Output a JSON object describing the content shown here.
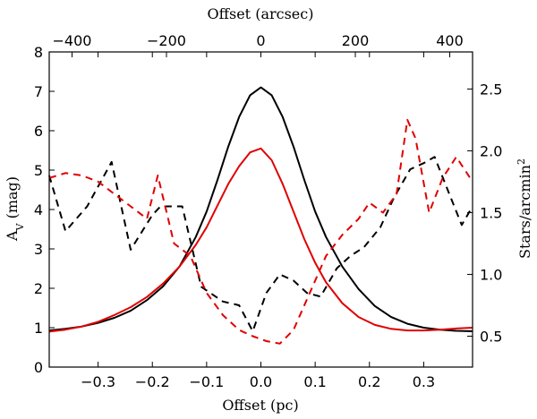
{
  "chart_data": {
    "type": "line",
    "x_bottom": {
      "label": "Offset (pc)",
      "lim": [
        -0.39,
        0.39
      ],
      "ticks": [
        -0.3,
        -0.2,
        -0.1,
        0.0,
        0.1,
        0.2,
        0.3
      ],
      "tick_labels": [
        "−0.3",
        "−0.2",
        "−0.1",
        "0.0",
        "0.1",
        "0.2",
        "0.3"
      ]
    },
    "x_top": {
      "label": "Offset (arcsec)",
      "ticks_pc": [
        -0.348,
        -0.174,
        0.0,
        0.174,
        0.348
      ],
      "tick_labels": [
        "−400",
        "−200",
        "0",
        "200",
        "400"
      ]
    },
    "y_left": {
      "label_main": "A",
      "label_sub": "V",
      "label_rest": " (mag)",
      "lim": [
        0,
        8
      ],
      "ticks": [
        0,
        1,
        2,
        3,
        4,
        5,
        6,
        7,
        8
      ],
      "tick_labels": [
        "0",
        "1",
        "2",
        "3",
        "4",
        "5",
        "6",
        "7",
        "8"
      ]
    },
    "y_right": {
      "label_main": "Stars/arcmin",
      "label_sup": "2",
      "lim": [
        0.25,
        2.8
      ],
      "ticks": [
        0.5,
        1.0,
        1.5,
        2.0,
        2.5
      ],
      "tick_labels": [
        "0.5",
        "1.0",
        "1.5",
        "2.0",
        "2.5"
      ]
    },
    "series": [
      {
        "name": "Av model (black)",
        "axis": "left",
        "color": "#000000",
        "dashed": false,
        "x": [
          -0.39,
          -0.36,
          -0.33,
          -0.3,
          -0.27,
          -0.24,
          -0.21,
          -0.18,
          -0.15,
          -0.12,
          -0.1,
          -0.08,
          -0.06,
          -0.04,
          -0.02,
          0.0,
          0.02,
          0.04,
          0.06,
          0.08,
          0.1,
          0.12,
          0.15,
          0.18,
          0.21,
          0.24,
          0.27,
          0.3,
          0.33,
          0.36,
          0.39
        ],
        "y": [
          0.93,
          0.97,
          1.03,
          1.12,
          1.25,
          1.43,
          1.7,
          2.05,
          2.55,
          3.3,
          3.95,
          4.75,
          5.6,
          6.35,
          6.9,
          7.1,
          6.9,
          6.35,
          5.6,
          4.75,
          3.95,
          3.3,
          2.55,
          1.98,
          1.55,
          1.27,
          1.1,
          1.0,
          0.95,
          0.92,
          0.91
        ]
      },
      {
        "name": "Av model (red)",
        "axis": "left",
        "color": "#e00000",
        "dashed": false,
        "x": [
          -0.39,
          -0.36,
          -0.33,
          -0.3,
          -0.27,
          -0.24,
          -0.21,
          -0.18,
          -0.15,
          -0.12,
          -0.1,
          -0.08,
          -0.06,
          -0.04,
          -0.02,
          0.0,
          0.02,
          0.04,
          0.06,
          0.08,
          0.1,
          0.12,
          0.15,
          0.18,
          0.21,
          0.24,
          0.27,
          0.3,
          0.33,
          0.36,
          0.39
        ],
        "y": [
          0.9,
          0.95,
          1.03,
          1.15,
          1.32,
          1.52,
          1.78,
          2.12,
          2.55,
          3.1,
          3.55,
          4.1,
          4.65,
          5.1,
          5.45,
          5.55,
          5.25,
          4.65,
          3.95,
          3.25,
          2.65,
          2.15,
          1.62,
          1.27,
          1.07,
          0.97,
          0.93,
          0.93,
          0.95,
          0.98,
          1.0
        ]
      },
      {
        "name": "Star counts (black dashed)",
        "axis": "right",
        "color": "#000000",
        "dashed": true,
        "x": [
          -0.39,
          -0.36,
          -0.32,
          -0.275,
          -0.24,
          -0.2,
          -0.185,
          -0.145,
          -0.11,
          -0.07,
          -0.04,
          -0.015,
          0.01,
          0.035,
          0.06,
          0.085,
          0.11,
          0.14,
          0.165,
          0.19,
          0.22,
          0.245,
          0.275,
          0.3,
          0.32,
          0.35,
          0.37,
          0.39
        ],
        "y": [
          1.8,
          1.35,
          1.55,
          1.91,
          1.2,
          1.48,
          1.55,
          1.55,
          0.9,
          0.78,
          0.75,
          0.54,
          0.85,
          1.0,
          0.95,
          0.85,
          0.82,
          1.05,
          1.15,
          1.22,
          1.38,
          1.62,
          1.85,
          1.9,
          1.95,
          1.62,
          1.4,
          1.55
        ]
      },
      {
        "name": "Star counts (red dashed)",
        "axis": "right",
        "color": "#e00000",
        "dashed": true,
        "x": [
          -0.39,
          -0.36,
          -0.33,
          -0.3,
          -0.27,
          -0.24,
          -0.21,
          -0.19,
          -0.16,
          -0.13,
          -0.1,
          -0.07,
          -0.04,
          -0.015,
          0.01,
          0.035,
          0.06,
          0.09,
          0.12,
          0.15,
          0.18,
          0.2,
          0.225,
          0.25,
          0.27,
          0.285,
          0.31,
          0.335,
          0.36,
          0.39
        ],
        "y": [
          1.78,
          1.82,
          1.8,
          1.75,
          1.65,
          1.55,
          1.45,
          1.8,
          1.25,
          1.15,
          0.85,
          0.67,
          0.55,
          0.5,
          0.46,
          0.44,
          0.55,
          0.85,
          1.15,
          1.32,
          1.45,
          1.58,
          1.5,
          1.65,
          2.25,
          2.1,
          1.5,
          1.78,
          1.95,
          1.75
        ]
      }
    ]
  }
}
